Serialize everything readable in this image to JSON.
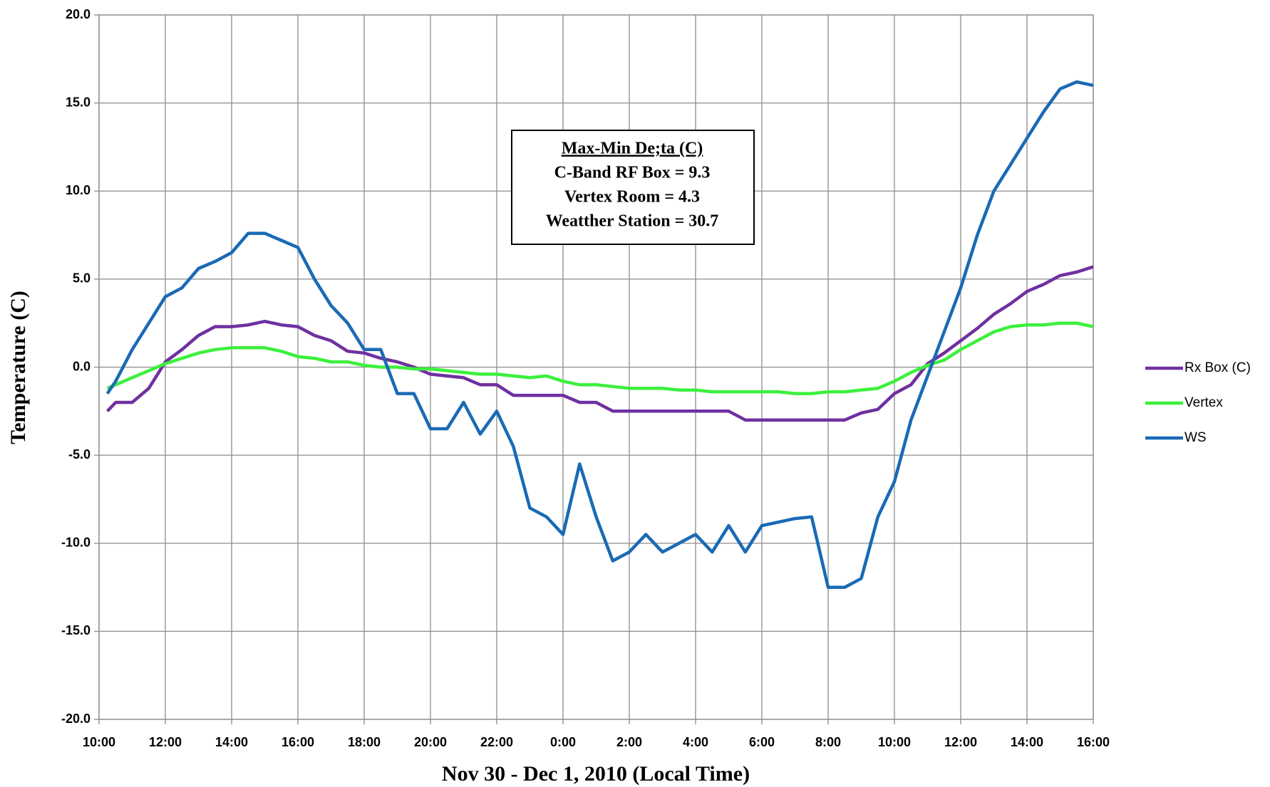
{
  "chart_data": {
    "type": "line",
    "x_label": "Nov 30 - Dec 1, 2010 (Local Time)",
    "y_label": "Temperature (C)",
    "annotation": [
      "Max-Min De;ta (C)",
      "C-Band RF Box = 9.3",
      "Vertex Room = 4.3",
      "Weatther Station = 30.7"
    ],
    "grid": true,
    "legend": "right",
    "xlim": [
      10,
      40
    ],
    "ylim": [
      -20,
      20
    ],
    "xticks": [
      {
        "value": 10,
        "label": "10:00"
      },
      {
        "value": 12,
        "label": "12:00"
      },
      {
        "value": 14,
        "label": "14:00"
      },
      {
        "value": 16,
        "label": "16:00"
      },
      {
        "value": 18,
        "label": "18:00"
      },
      {
        "value": 20,
        "label": "20:00"
      },
      {
        "value": 22,
        "label": "22:00"
      },
      {
        "value": 24,
        "label": "0:00"
      },
      {
        "value": 26,
        "label": "2:00"
      },
      {
        "value": 28,
        "label": "4:00"
      },
      {
        "value": 30,
        "label": "6:00"
      },
      {
        "value": 32,
        "label": "8:00"
      },
      {
        "value": 34,
        "label": "10:00"
      },
      {
        "value": 36,
        "label": "12:00"
      },
      {
        "value": 38,
        "label": "14:00"
      },
      {
        "value": 40,
        "label": "16:00"
      }
    ],
    "yticks": [
      {
        "value": 20,
        "label": "20.0"
      },
      {
        "value": 15,
        "label": "15.0"
      },
      {
        "value": 10,
        "label": "10.0"
      },
      {
        "value": 5,
        "label": "5.0"
      },
      {
        "value": 0,
        "label": "0.0"
      },
      {
        "value": -5,
        "label": "-5.0"
      },
      {
        "value": -10,
        "label": "-10.0"
      },
      {
        "value": -15,
        "label": "-15.0"
      },
      {
        "value": -20,
        "label": "-20.0"
      }
    ],
    "x": [
      10.25,
      10.5,
      11,
      11.5,
      12,
      12.5,
      13,
      13.5,
      14,
      14.5,
      15,
      15.5,
      16,
      16.5,
      17,
      17.5,
      18,
      18.5,
      19,
      19.5,
      20,
      20.5,
      21,
      21.5,
      22,
      22.5,
      23,
      23.5,
      24,
      24.5,
      25,
      25.5,
      26,
      26.5,
      27,
      27.5,
      28,
      28.5,
      29,
      29.5,
      30,
      30.5,
      31,
      31.5,
      32,
      32.5,
      33,
      33.5,
      34,
      34.5,
      35,
      35.5,
      36,
      36.5,
      37,
      37.5,
      38,
      38.5,
      39,
      39.5,
      40
    ],
    "series": [
      {
        "name": "Rx Box (C)",
        "color": "#7030a0",
        "values": [
          -2.5,
          -2.0,
          -2.0,
          -1.2,
          0.3,
          1.0,
          1.8,
          2.3,
          2.3,
          2.4,
          2.6,
          2.4,
          2.3,
          1.8,
          1.5,
          0.9,
          0.8,
          0.5,
          0.3,
          0.0,
          -0.4,
          -0.5,
          -0.6,
          -1.0,
          -1.0,
          -1.6,
          -1.6,
          -1.6,
          -1.6,
          -2.0,
          -2.0,
          -2.5,
          -2.5,
          -2.5,
          -2.5,
          -2.5,
          -2.5,
          -2.5,
          -2.5,
          -3.0,
          -3.0,
          -3.0,
          -3.0,
          -3.0,
          -3.0,
          -3.0,
          -2.6,
          -2.4,
          -1.5,
          -1.0,
          0.2,
          0.8,
          1.5,
          2.2,
          3.0,
          3.6,
          4.3,
          4.7,
          5.2,
          5.4,
          5.7
        ]
      },
      {
        "name": "Vertex",
        "color": "#3cf03c",
        "values": [
          -1.2,
          -1.0,
          -0.6,
          -0.2,
          0.2,
          0.5,
          0.8,
          1.0,
          1.1,
          1.1,
          1.1,
          0.9,
          0.6,
          0.5,
          0.3,
          0.3,
          0.1,
          0.0,
          0.0,
          -0.1,
          -0.1,
          -0.2,
          -0.3,
          -0.4,
          -0.4,
          -0.5,
          -0.6,
          -0.5,
          -0.8,
          -1.0,
          -1.0,
          -1.1,
          -1.2,
          -1.2,
          -1.2,
          -1.3,
          -1.3,
          -1.4,
          -1.4,
          -1.4,
          -1.4,
          -1.4,
          -1.5,
          -1.5,
          -1.4,
          -1.4,
          -1.3,
          -1.2,
          -0.8,
          -0.3,
          0.1,
          0.4,
          1.0,
          1.5,
          2.0,
          2.3,
          2.4,
          2.4,
          2.5,
          2.5,
          2.3
        ]
      },
      {
        "name": "WS",
        "color": "#1a6ab5",
        "values": [
          -1.5,
          -0.8,
          1.0,
          2.5,
          4.0,
          4.5,
          5.6,
          6.0,
          6.5,
          7.6,
          7.6,
          7.2,
          6.8,
          5.0,
          3.5,
          2.5,
          1.0,
          1.0,
          -1.5,
          -1.5,
          -3.5,
          -3.5,
          -2.0,
          -3.8,
          -2.5,
          -4.5,
          -8.0,
          -8.5,
          -9.5,
          -5.5,
          -8.5,
          -11.0,
          -10.5,
          -9.5,
          -10.5,
          -10.0,
          -9.5,
          -10.5,
          -9.0,
          -10.5,
          -9.0,
          -8.8,
          -8.6,
          -8.5,
          -12.5,
          -12.5,
          -12.0,
          -8.5,
          -6.5,
          -3.0,
          -0.5,
          2.0,
          4.5,
          7.5,
          10.0,
          11.5,
          13.0,
          14.5,
          15.8,
          16.2,
          16.0
        ]
      }
    ]
  }
}
